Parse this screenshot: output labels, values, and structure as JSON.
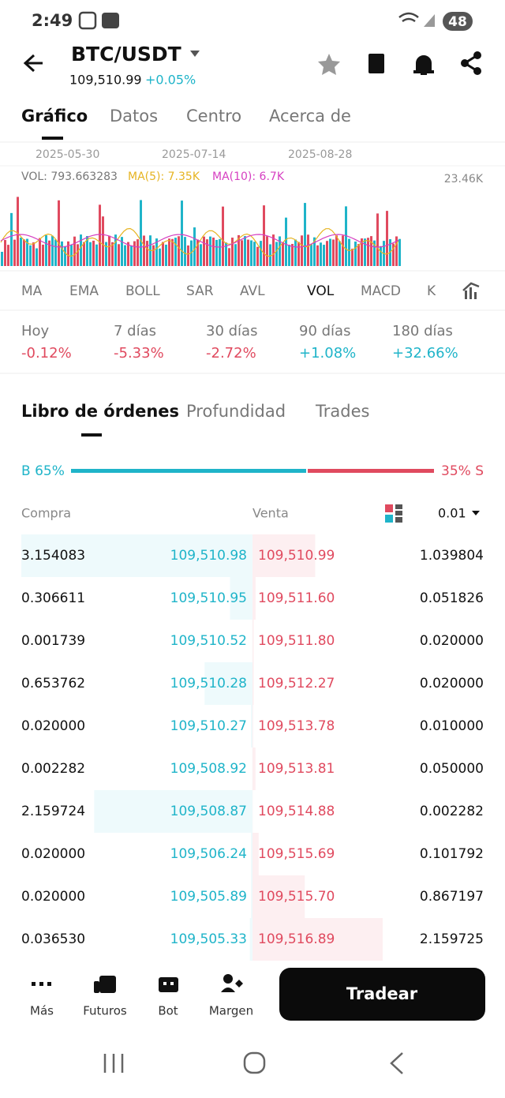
{
  "status_bar": {
    "time": "2:49",
    "battery": "48"
  },
  "header": {
    "pair": "BTC/USDT",
    "price": "109,510.99",
    "change": "+0.05%"
  },
  "tabs": [
    "Gráfico",
    "Datos",
    "Centro",
    "Acerca de"
  ],
  "chart": {
    "dates": [
      "2025-05-30",
      "2025-07-14",
      "2025-08-28"
    ],
    "vol": "VOL: 793.663283",
    "ma5": "MA(5): 7.35K",
    "ma10": "MA(10): 6.7K",
    "max": "23.46K"
  },
  "indicators": [
    "MA",
    "EMA",
    "BOLL",
    "SAR",
    "AVL",
    "VOL",
    "MACD",
    "K"
  ],
  "periods": [
    {
      "label": "Hoy",
      "change": "-0.12%"
    },
    {
      "label": "7 días",
      "change": "-5.33%"
    },
    {
      "label": "30 días",
      "change": "-2.72%"
    },
    {
      "label": "90 días",
      "change": "+1.08%"
    },
    {
      "label": "180 días",
      "change": "+32.66%"
    }
  ],
  "book_tabs": [
    "Libro de órdenes",
    "Profundidad",
    "Trades"
  ],
  "ratio": {
    "buy": "B 65%",
    "sell": "35% S"
  },
  "book_header": {
    "buy": "Compra",
    "sell": "Venta",
    "step": "0.01"
  },
  "rows": [
    [
      "3.154083",
      "109,510.98",
      "109,510.99",
      "1.039804"
    ],
    [
      "0.306611",
      "109,510.95",
      "109,511.60",
      "0.051826"
    ],
    [
      "0.001739",
      "109,510.52",
      "109,511.80",
      "0.020000"
    ],
    [
      "0.653762",
      "109,510.28",
      "109,512.27",
      "0.020000"
    ],
    [
      "0.020000",
      "109,510.27",
      "109,513.78",
      "0.010000"
    ],
    [
      "0.002282",
      "109,508.92",
      "109,513.81",
      "0.050000"
    ],
    [
      "2.159724",
      "109,508.87",
      "109,514.88",
      "0.002282"
    ],
    [
      "0.020000",
      "109,506.24",
      "109,515.69",
      "0.101792"
    ],
    [
      "0.020000",
      "109,505.89",
      "109,515.70",
      "0.867197"
    ],
    [
      "0.036530",
      "109,505.33",
      "109,516.89",
      "2.159725"
    ]
  ],
  "nav": [
    "Más",
    "Futuros",
    "Bot",
    "Margen"
  ],
  "button": "Tradear"
}
